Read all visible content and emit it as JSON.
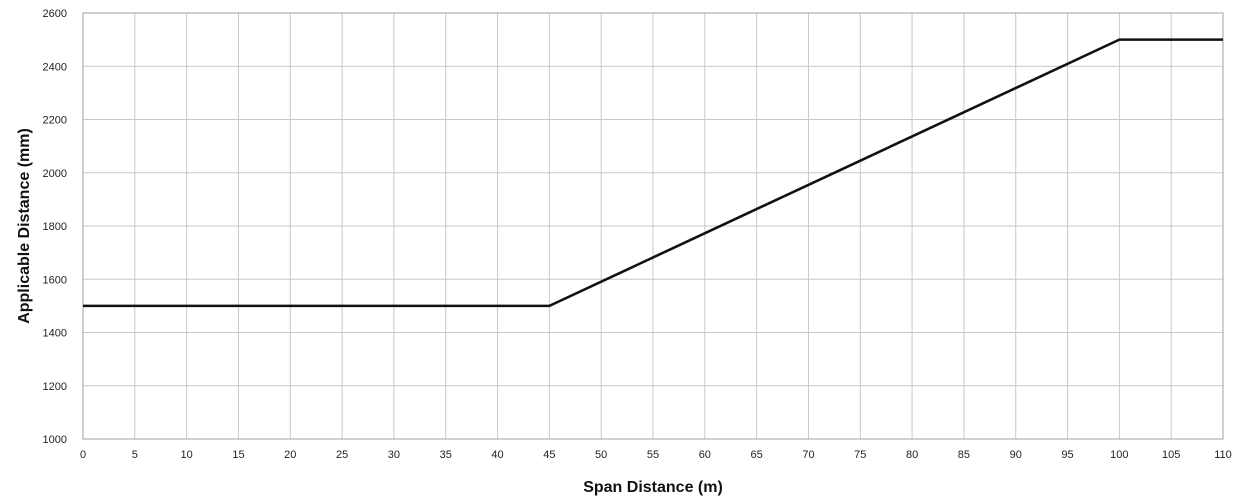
{
  "chart_data": {
    "type": "line",
    "title": "",
    "xlabel": "Span Distance (m)",
    "ylabel": "Applicable Distance (mm)",
    "xlim": [
      0,
      110
    ],
    "ylim": [
      1000,
      2600
    ],
    "x_ticks": [
      0,
      5,
      10,
      15,
      20,
      25,
      30,
      35,
      40,
      45,
      50,
      55,
      60,
      65,
      70,
      75,
      80,
      85,
      90,
      95,
      100,
      105,
      110
    ],
    "y_ticks": [
      1000,
      1200,
      1400,
      1600,
      1800,
      2000,
      2200,
      2400,
      2600
    ],
    "grid": true,
    "legend": "none",
    "line_color": "#111111",
    "series": [
      {
        "x": [
          0,
          45,
          100,
          110
        ],
        "y": [
          1500,
          1500,
          2500,
          2500
        ]
      }
    ]
  }
}
